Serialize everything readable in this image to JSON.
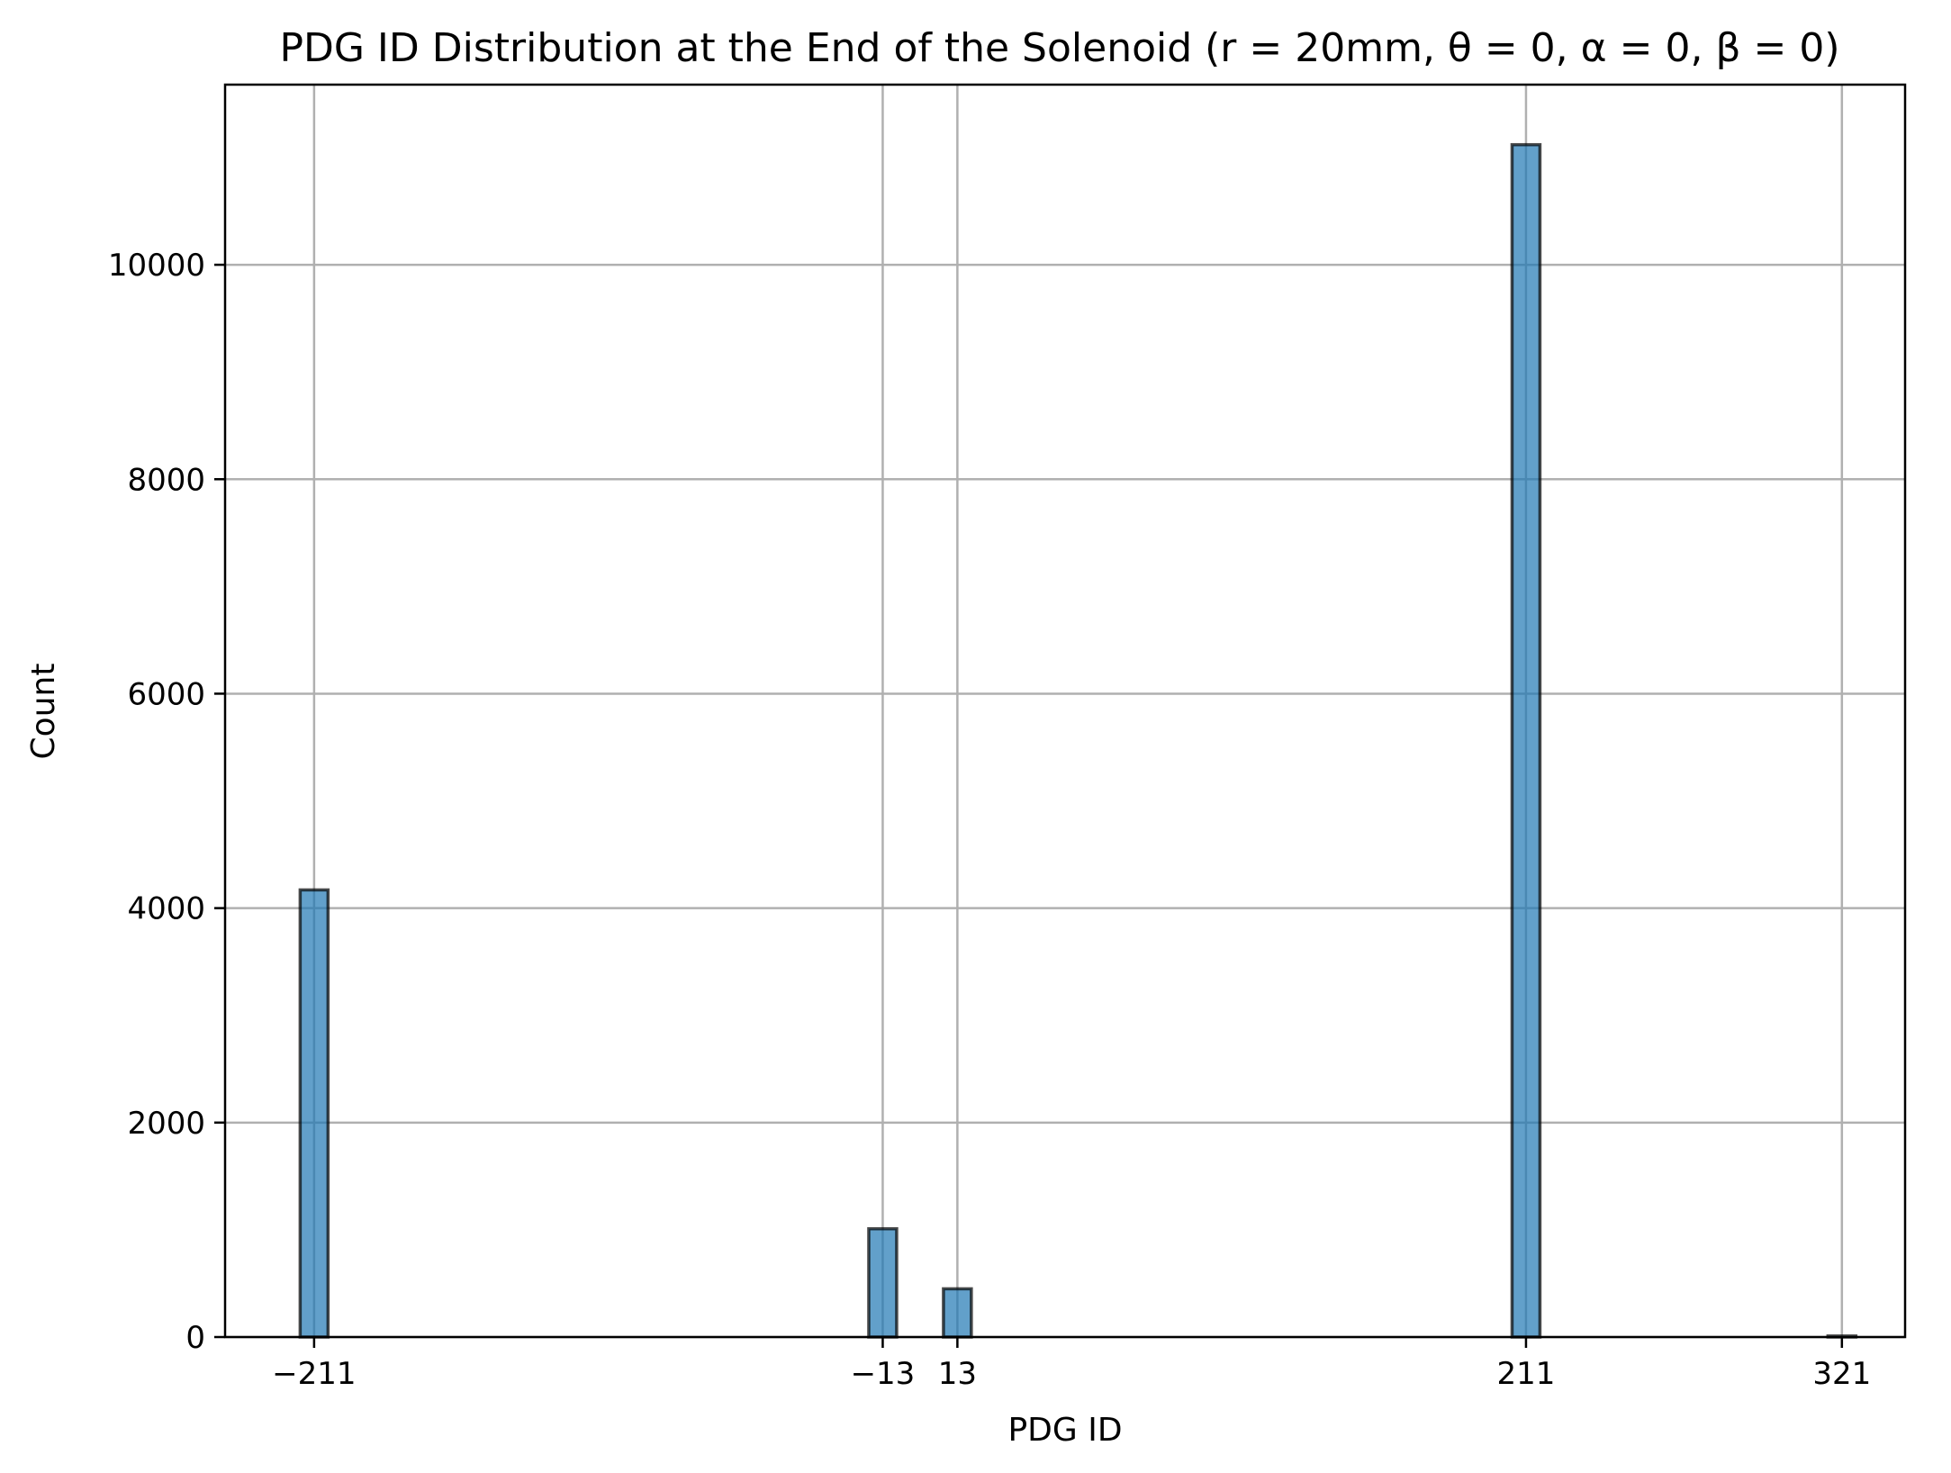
{
  "chart_data": {
    "type": "bar",
    "title": "PDG ID Distribution at the End of the Solenoid (r = 20mm, θ = 0, α = 0, β = 0)",
    "xlabel": "PDG ID",
    "ylabel": "Count",
    "categories": [
      "−211",
      "−13",
      "13",
      "211",
      "321"
    ],
    "x": [
      -211,
      -13,
      13,
      211,
      321
    ],
    "values": [
      4170,
      1010,
      450,
      11120,
      10
    ],
    "xlim": [
      -242,
      343
    ],
    "ylim": [
      0,
      11680
    ],
    "yticks": [
      0,
      2000,
      4000,
      6000,
      8000,
      10000
    ],
    "ytick_labels": [
      "0",
      "2000",
      "4000",
      "6000",
      "8000",
      "10000"
    ],
    "grid": true,
    "bar_color": "#1f77b4",
    "edge_color": "#000000"
  }
}
